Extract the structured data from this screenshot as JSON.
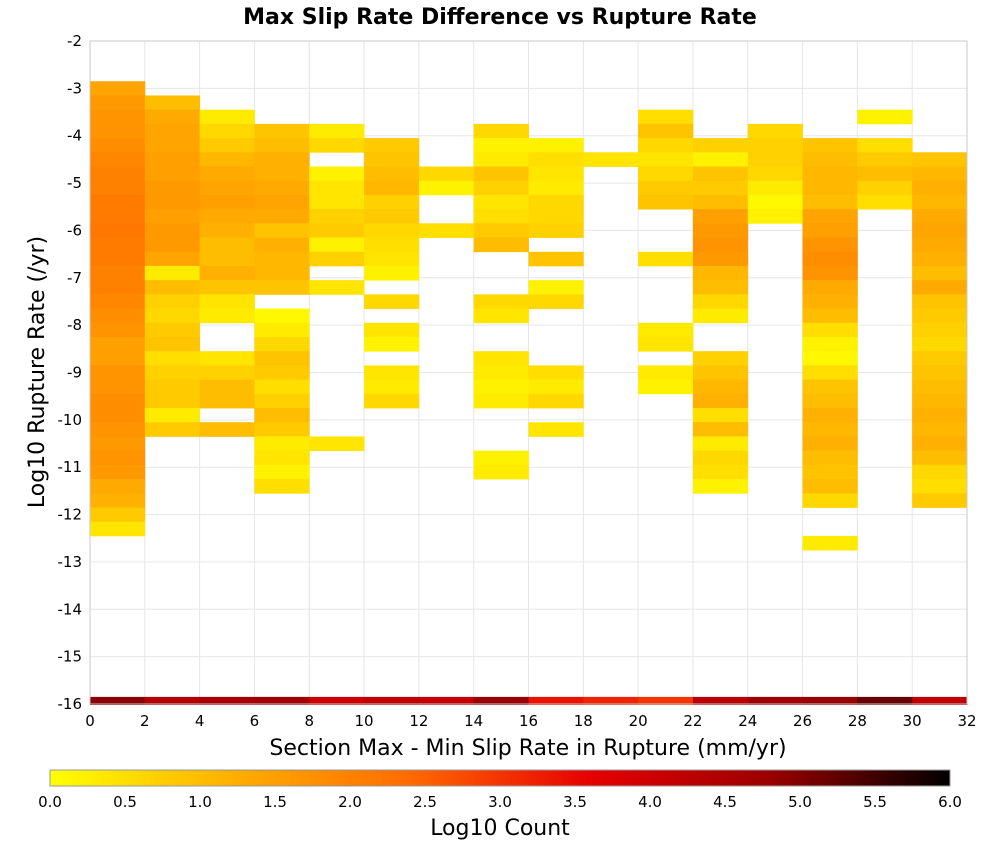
{
  "chart_data": {
    "type": "heatmap",
    "title": "Max Slip Rate Difference vs Rupture Rate",
    "xlabel": "Section Max - Min Slip Rate in Rupture (mm/yr)",
    "ylabel": "Log10 Rupture Rate (/yr)",
    "xlim": [
      0,
      32
    ],
    "ylim": [
      -16,
      -2
    ],
    "x_bin_width": 2,
    "y_bin_height": 0.3,
    "x_ticks": [
      "0",
      "2",
      "4",
      "6",
      "8",
      "10",
      "12",
      "14",
      "16",
      "18",
      "20",
      "22",
      "24",
      "26",
      "28",
      "30",
      "32"
    ],
    "y_ticks": [
      "-2",
      "-3",
      "-4",
      "-5",
      "-6",
      "-7",
      "-8",
      "-9",
      "-10",
      "-11",
      "-12",
      "-13",
      "-14",
      "-15",
      "-16"
    ],
    "grid": true,
    "colorbar": {
      "label": "Log10 Count",
      "range": [
        0,
        6
      ],
      "ticks": [
        "0.0",
        "0.5",
        "1.0",
        "1.5",
        "2.0",
        "2.5",
        "3.0",
        "3.5",
        "4.0",
        "4.5",
        "5.0",
        "5.5",
        "6.0"
      ],
      "stops": [
        "#ffff00",
        "#ffb000",
        "#ff6a00",
        "#e60000",
        "#9a0000",
        "#000000"
      ]
    },
    "columns": [
      {
        "x": 0,
        "cells": [
          [
            -3.0,
            1.4
          ],
          [
            -3.3,
            1.6
          ],
          [
            -3.6,
            1.7
          ],
          [
            -3.9,
            1.7
          ],
          [
            -4.2,
            1.8
          ],
          [
            -4.5,
            1.9
          ],
          [
            -4.8,
            2.0
          ],
          [
            -5.1,
            2.0
          ],
          [
            -5.4,
            2.1
          ],
          [
            -5.7,
            2.1
          ],
          [
            -6.0,
            2.2
          ],
          [
            -6.3,
            2.1
          ],
          [
            -6.6,
            2.1
          ],
          [
            -6.9,
            2.0
          ],
          [
            -7.2,
            2.0
          ],
          [
            -7.5,
            1.9
          ],
          [
            -7.8,
            1.8
          ],
          [
            -8.1,
            1.7
          ],
          [
            -8.4,
            1.5
          ],
          [
            -8.7,
            1.5
          ],
          [
            -9.0,
            1.7
          ],
          [
            -9.3,
            1.7
          ],
          [
            -9.6,
            1.8
          ],
          [
            -9.9,
            1.8
          ],
          [
            -10.2,
            1.7
          ],
          [
            -10.5,
            1.6
          ],
          [
            -10.8,
            1.7
          ],
          [
            -11.1,
            1.6
          ],
          [
            -11.4,
            1.3
          ],
          [
            -11.7,
            1.2
          ],
          [
            -12.0,
            0.8
          ],
          [
            -12.3,
            0.4
          ]
        ]
      },
      {
        "x": 2,
        "cells": [
          [
            -3.3,
            1.0
          ],
          [
            -3.6,
            1.3
          ],
          [
            -3.9,
            1.4
          ],
          [
            -4.2,
            1.4
          ],
          [
            -4.5,
            1.5
          ],
          [
            -4.8,
            1.5
          ],
          [
            -5.1,
            1.6
          ],
          [
            -5.4,
            1.6
          ],
          [
            -5.7,
            1.5
          ],
          [
            -6.0,
            1.6
          ],
          [
            -6.3,
            1.6
          ],
          [
            -6.6,
            1.4
          ],
          [
            -6.9,
            0.3
          ],
          [
            -7.2,
            1.0
          ],
          [
            -7.5,
            0.7
          ],
          [
            -7.8,
            0.6
          ],
          [
            -8.1,
            0.8
          ],
          [
            -8.4,
            0.9
          ],
          [
            -8.7,
            0.5
          ],
          [
            -9.0,
            0.7
          ],
          [
            -9.3,
            0.8
          ],
          [
            -9.6,
            0.8
          ],
          [
            -9.9,
            0.3
          ],
          [
            -10.2,
            0.8
          ]
        ]
      },
      {
        "x": 4,
        "cells": [
          [
            -3.6,
            0.3
          ],
          [
            -3.9,
            0.6
          ],
          [
            -4.2,
            0.8
          ],
          [
            -4.5,
            1.1
          ],
          [
            -4.8,
            1.3
          ],
          [
            -5.1,
            1.4
          ],
          [
            -5.4,
            1.5
          ],
          [
            -5.7,
            1.3
          ],
          [
            -6.0,
            1.2
          ],
          [
            -6.3,
            1.0
          ],
          [
            -6.6,
            1.0
          ],
          [
            -6.9,
            1.2
          ],
          [
            -7.2,
            0.9
          ],
          [
            -7.5,
            0.4
          ],
          [
            -7.8,
            0.3
          ],
          [
            -8.7,
            0.4
          ],
          [
            -9.0,
            0.7
          ],
          [
            -9.3,
            1.0
          ],
          [
            -9.6,
            1.0
          ],
          [
            -10.2,
            1.0
          ]
        ]
      },
      {
        "x": 6,
        "cells": [
          [
            -3.9,
            0.9
          ],
          [
            -4.2,
            1.0
          ],
          [
            -4.5,
            1.2
          ],
          [
            -4.8,
            1.2
          ],
          [
            -5.1,
            1.3
          ],
          [
            -5.4,
            1.4
          ],
          [
            -5.7,
            1.3
          ],
          [
            -6.0,
            0.9
          ],
          [
            -6.3,
            1.2
          ],
          [
            -6.6,
            1.1
          ],
          [
            -6.9,
            1.1
          ],
          [
            -7.2,
            0.9
          ],
          [
            -7.8,
            0.1
          ],
          [
            -8.1,
            0.3
          ],
          [
            -8.4,
            0.6
          ],
          [
            -8.7,
            0.9
          ],
          [
            -9.0,
            0.8
          ],
          [
            -9.3,
            0.5
          ],
          [
            -9.6,
            0.7
          ],
          [
            -9.9,
            1.0
          ],
          [
            -10.2,
            0.8
          ],
          [
            -10.5,
            0.3
          ],
          [
            -10.8,
            0.4
          ],
          [
            -11.1,
            0.2
          ],
          [
            -11.4,
            0.5
          ]
        ]
      },
      {
        "x": 8,
        "cells": [
          [
            -3.9,
            0.3
          ],
          [
            -4.2,
            0.6
          ],
          [
            -4.8,
            0.2
          ],
          [
            -5.1,
            0.4
          ],
          [
            -5.4,
            0.4
          ],
          [
            -5.7,
            0.7
          ],
          [
            -6.0,
            0.8
          ],
          [
            -6.3,
            0.2
          ],
          [
            -6.6,
            0.7
          ],
          [
            -7.2,
            0.4
          ],
          [
            -10.5,
            0.4
          ]
        ]
      },
      {
        "x": 10,
        "cells": [
          [
            -4.2,
            0.8
          ],
          [
            -4.5,
            0.9
          ],
          [
            -4.8,
            1.0
          ],
          [
            -5.1,
            1.1
          ],
          [
            -5.4,
            0.7
          ],
          [
            -5.7,
            0.8
          ],
          [
            -6.0,
            0.6
          ],
          [
            -6.3,
            0.5
          ],
          [
            -6.6,
            0.4
          ],
          [
            -6.9,
            0.2
          ],
          [
            -7.5,
            0.6
          ],
          [
            -8.1,
            0.4
          ],
          [
            -8.4,
            0.2
          ],
          [
            -9.0,
            0.4
          ],
          [
            -9.3,
            0.3
          ],
          [
            -9.6,
            0.6
          ]
        ]
      },
      {
        "x": 12,
        "cells": [
          [
            -4.8,
            0.6
          ],
          [
            -5.1,
            0.2
          ],
          [
            -6.0,
            0.5
          ]
        ]
      },
      {
        "x": 14,
        "cells": [
          [
            -3.9,
            0.6
          ],
          [
            -4.2,
            0.2
          ],
          [
            -4.5,
            0.3
          ],
          [
            -4.8,
            0.9
          ],
          [
            -5.1,
            0.7
          ],
          [
            -5.4,
            0.4
          ],
          [
            -5.7,
            0.5
          ],
          [
            -6.0,
            0.8
          ],
          [
            -6.3,
            1.0
          ],
          [
            -7.5,
            0.6
          ],
          [
            -7.8,
            0.4
          ],
          [
            -8.7,
            0.4
          ],
          [
            -9.0,
            0.3
          ],
          [
            -9.3,
            0.2
          ],
          [
            -9.6,
            0.3
          ],
          [
            -10.8,
            0.2
          ],
          [
            -11.1,
            0.3
          ]
        ]
      },
      {
        "x": 16,
        "cells": [
          [
            -4.2,
            0.2
          ],
          [
            -4.5,
            0.5
          ],
          [
            -4.8,
            0.4
          ],
          [
            -5.1,
            0.3
          ],
          [
            -5.4,
            0.6
          ],
          [
            -5.7,
            0.6
          ],
          [
            -6.0,
            0.7
          ],
          [
            -6.6,
            0.9
          ],
          [
            -7.2,
            0.2
          ],
          [
            -7.5,
            0.6
          ],
          [
            -9.0,
            0.5
          ],
          [
            -9.3,
            0.3
          ],
          [
            -9.6,
            0.6
          ],
          [
            -10.2,
            0.4
          ]
        ]
      },
      {
        "x": 18,
        "cells": [
          [
            -4.5,
            0.4
          ]
        ]
      },
      {
        "x": 20,
        "cells": [
          [
            -3.6,
            0.5
          ],
          [
            -3.9,
            0.9
          ],
          [
            -4.2,
            0.6
          ],
          [
            -4.5,
            0.4
          ],
          [
            -4.8,
            0.6
          ],
          [
            -5.1,
            0.8
          ],
          [
            -5.4,
            0.9
          ],
          [
            -6.6,
            0.5
          ],
          [
            -8.1,
            0.3
          ],
          [
            -8.4,
            0.4
          ],
          [
            -9.0,
            0.3
          ],
          [
            -9.3,
            0.2
          ]
        ]
      },
      {
        "x": 22,
        "cells": [
          [
            -4.2,
            0.7
          ],
          [
            -4.5,
            0.2
          ],
          [
            -4.8,
            0.9
          ],
          [
            -5.1,
            0.8
          ],
          [
            -5.4,
            1.0
          ],
          [
            -5.7,
            1.5
          ],
          [
            -6.0,
            1.6
          ],
          [
            -6.3,
            1.7
          ],
          [
            -6.6,
            1.6
          ],
          [
            -6.9,
            1.1
          ],
          [
            -7.2,
            1.0
          ],
          [
            -7.5,
            0.6
          ],
          [
            -7.8,
            0.3
          ],
          [
            -8.7,
            0.7
          ],
          [
            -9.0,
            0.9
          ],
          [
            -9.3,
            1.1
          ],
          [
            -9.6,
            1.2
          ],
          [
            -9.9,
            0.5
          ],
          [
            -10.2,
            1.0
          ],
          [
            -10.5,
            0.3
          ],
          [
            -10.8,
            0.6
          ],
          [
            -11.1,
            0.5
          ],
          [
            -11.4,
            0.2
          ]
        ]
      },
      {
        "x": 24,
        "cells": [
          [
            -3.9,
            0.6
          ],
          [
            -4.2,
            0.7
          ],
          [
            -4.5,
            0.7
          ],
          [
            -4.8,
            0.6
          ],
          [
            -5.1,
            0.3
          ],
          [
            -5.4,
            0.1
          ],
          [
            -5.7,
            0.2
          ]
        ]
      },
      {
        "x": 26,
        "cells": [
          [
            -4.2,
            0.9
          ],
          [
            -4.5,
            1.0
          ],
          [
            -4.8,
            1.1
          ],
          [
            -5.1,
            1.1
          ],
          [
            -5.4,
            1.0
          ],
          [
            -5.7,
            1.4
          ],
          [
            -6.0,
            1.5
          ],
          [
            -6.3,
            1.7
          ],
          [
            -6.6,
            1.8
          ],
          [
            -6.9,
            1.7
          ],
          [
            -7.2,
            1.3
          ],
          [
            -7.5,
            1.2
          ],
          [
            -7.8,
            1.0
          ],
          [
            -8.1,
            0.5
          ],
          [
            -8.4,
            0.2
          ],
          [
            -8.7,
            0.1
          ],
          [
            -9.0,
            0.5
          ],
          [
            -9.3,
            0.9
          ],
          [
            -9.6,
            1.0
          ],
          [
            -9.9,
            1.2
          ],
          [
            -10.2,
            1.1
          ],
          [
            -10.5,
            1.2
          ],
          [
            -10.8,
            1.0
          ],
          [
            -11.1,
            0.9
          ],
          [
            -11.4,
            1.0
          ],
          [
            -11.7,
            0.6
          ],
          [
            -12.6,
            0.3
          ]
        ]
      },
      {
        "x": 28,
        "cells": [
          [
            -3.6,
            0.2
          ],
          [
            -4.2,
            0.5
          ],
          [
            -4.5,
            0.8
          ],
          [
            -4.8,
            1.0
          ],
          [
            -5.1,
            0.7
          ],
          [
            -5.4,
            0.5
          ]
        ]
      },
      {
        "x": 30,
        "cells": [
          [
            -4.5,
            0.9
          ],
          [
            -4.8,
            1.1
          ],
          [
            -5.1,
            1.2
          ],
          [
            -5.4,
            1.1
          ],
          [
            -5.7,
            1.3
          ],
          [
            -6.0,
            1.4
          ],
          [
            -6.3,
            1.3
          ],
          [
            -6.6,
            1.2
          ],
          [
            -6.9,
            1.0
          ],
          [
            -7.2,
            1.3
          ],
          [
            -7.5,
            0.9
          ],
          [
            -7.8,
            0.8
          ],
          [
            -8.1,
            0.7
          ],
          [
            -8.4,
            0.6
          ],
          [
            -8.7,
            0.8
          ],
          [
            -9.0,
            0.9
          ],
          [
            -9.3,
            1.0
          ],
          [
            -9.6,
            1.1
          ],
          [
            -9.9,
            1.2
          ],
          [
            -10.2,
            1.1
          ],
          [
            -10.5,
            1.2
          ],
          [
            -10.8,
            1.0
          ],
          [
            -11.1,
            0.6
          ],
          [
            -11.4,
            0.5
          ],
          [
            -11.7,
            0.8
          ]
        ]
      }
    ],
    "bottom_row": {
      "y": -16.0,
      "values": [
        4.9,
        4.4,
        4.6,
        4.7,
        4.0,
        4.2,
        4.1,
        4.8,
        3.4,
        3.2,
        3.0,
        4.3,
        4.7,
        4.8,
        5.2,
        4.2
      ]
    }
  }
}
